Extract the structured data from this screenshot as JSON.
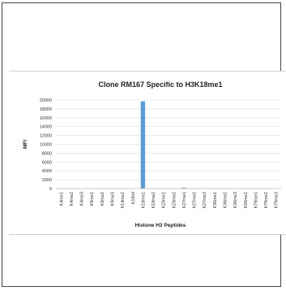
{
  "chart_data": {
    "type": "bar",
    "title": "Clone RM167 Specific to H3K18me1",
    "xlabel": "Histone H3 Peptides",
    "ylabel": "MFI",
    "ylim": [
      0,
      20000
    ],
    "yticks": [
      0,
      2000,
      4000,
      6000,
      8000,
      10000,
      12000,
      14000,
      16000,
      18000,
      20000
    ],
    "grid": true,
    "bar_color": "#5b9bd5",
    "categories": [
      "K4me1",
      "K4me2",
      "K4me3",
      "K9me1",
      "K9me2",
      "K9me3",
      "K14me2",
      "K18ctl",
      "K18me1",
      "K18me2",
      "K23me1",
      "K23me2",
      "K27me1",
      "K27me2",
      "K27me3",
      "K36me1",
      "K36me2",
      "K36me3",
      "K56me1",
      "K79me1",
      "K79me2",
      "K79me3"
    ],
    "values": [
      0,
      0,
      0,
      0,
      0,
      0,
      0,
      0,
      19700,
      0,
      0,
      0,
      200,
      0,
      0,
      0,
      0,
      0,
      0,
      0,
      0,
      0
    ]
  }
}
